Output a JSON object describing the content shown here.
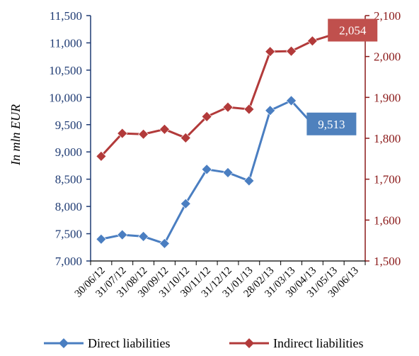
{
  "chart_data": {
    "type": "line",
    "title": "",
    "xlabel": "",
    "ylabel": "In mln EUR",
    "categories": [
      "30/06/12",
      "31/07/12",
      "31/08/12",
      "30/09/12",
      "31/10/12",
      "30/11/12",
      "31/12/12",
      "31/01/13",
      "28/02/13",
      "31/03/13",
      "30/04/13",
      "31/05/13",
      "30/06/13"
    ],
    "y_left": {
      "min": 7000,
      "max": 11500,
      "ticks": [
        "7,000",
        "7,500",
        "8,000",
        "8,500",
        "9,000",
        "9,500",
        "10,000",
        "10,500",
        "11,000",
        "11,500"
      ],
      "color": "#1f3b73"
    },
    "y_right": {
      "min": 1500,
      "max": 2100,
      "ticks": [
        "1,500",
        "1,600",
        "1,700",
        "1,800",
        "1,900",
        "2,000",
        "2,100"
      ],
      "color": "#8b1a1a"
    },
    "grid": false,
    "legend_position": "bottom",
    "series": [
      {
        "name": "Direct liabilities",
        "axis": "left",
        "color": "#4a7ec1",
        "values": [
          7400,
          7480,
          7450,
          7320,
          8050,
          8680,
          8620,
          8470,
          9760,
          9940,
          9513,
          null,
          null
        ],
        "callout": {
          "label": "9,513",
          "index": 10,
          "bg": "#4f81bd"
        }
      },
      {
        "name": "Indirect liabilities",
        "axis": "right",
        "color": "#b23a3a",
        "values": [
          1756,
          1812,
          1810,
          1822,
          1801,
          1853,
          1876,
          1871,
          2012,
          2013,
          2038,
          2054,
          null
        ],
        "callout": {
          "label": "2,054",
          "index": 11,
          "bg": "#c0504d"
        }
      }
    ]
  }
}
